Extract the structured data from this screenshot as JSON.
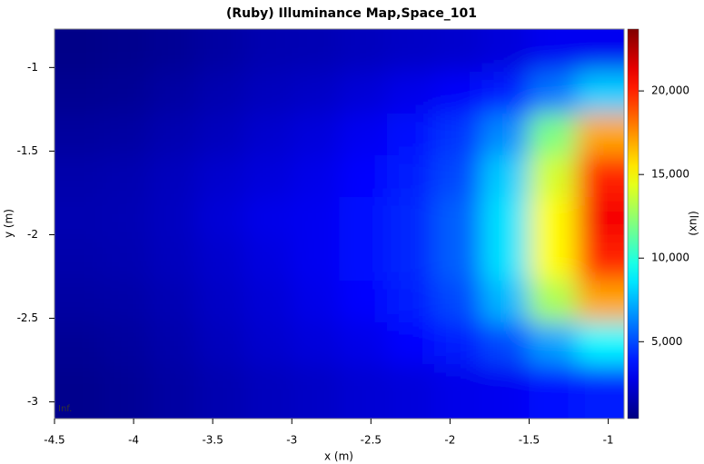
{
  "chart_data": {
    "type": "heatmap",
    "title": "(Ruby) Illuminance Map,Space_101",
    "x_label": "x (m)",
    "y_label": "y (m)",
    "colorbar_label": "(lux)",
    "annotation": "Inf.",
    "colormap": "jet",
    "x": [
      -4.35,
      -4.05,
      -3.75,
      -3.45,
      -3.15,
      -2.85,
      -2.55,
      -2.25,
      -1.95,
      -1.65,
      -1.35,
      -1.05
    ],
    "y": [
      -0.9,
      -1.15,
      -1.4,
      -1.65,
      -1.9,
      -2.15,
      -2.4,
      -2.65,
      -2.9
    ],
    "z": [
      [
        600,
        700,
        900,
        1200,
        1500,
        1600,
        1800,
        2000,
        2200,
        2500,
        3000,
        3000
      ],
      [
        800,
        900,
        1200,
        1500,
        1800,
        2000,
        2400,
        2800,
        3200,
        4000,
        6000,
        8000
      ],
      [
        1100,
        1200,
        1500,
        1800,
        2200,
        2500,
        3000,
        3500,
        4500,
        6500,
        12000,
        17000
      ],
      [
        1400,
        1500,
        1800,
        2200,
        2500,
        2800,
        3300,
        4000,
        5000,
        8000,
        14000,
        20000
      ],
      [
        1500,
        1600,
        1900,
        2400,
        2800,
        3000,
        3500,
        4200,
        5500,
        8500,
        15000,
        21000
      ],
      [
        1400,
        1500,
        1800,
        2200,
        2600,
        3000,
        3500,
        4200,
        5500,
        8500,
        15000,
        20000
      ],
      [
        1200,
        1300,
        1600,
        2000,
        2400,
        2800,
        3300,
        4000,
        5000,
        7500,
        13000,
        17000
      ],
      [
        900,
        1100,
        1400,
        1800,
        2200,
        2500,
        2800,
        3300,
        4000,
        5000,
        7000,
        9000
      ],
      [
        700,
        900,
        1200,
        1500,
        1800,
        2000,
        2300,
        2500,
        2800,
        3000,
        3500,
        4000
      ]
    ],
    "xlim": [
      -4.5,
      -0.9
    ],
    "ylim": [
      -3.1,
      -0.77
    ],
    "zlim": [
      400,
      23700
    ],
    "xticks": [
      -4.5,
      -4,
      -3.5,
      -3,
      -2.5,
      -2,
      -1.5,
      -1
    ],
    "yticks": [
      -1,
      -1.5,
      -2,
      -2.5,
      -3
    ],
    "zticks": [
      {
        "value": 5000,
        "label": "5,000"
      },
      {
        "value": 10000,
        "label": "10,000"
      },
      {
        "value": 15000,
        "label": "15,000"
      },
      {
        "value": 20000,
        "label": "20,000"
      }
    ]
  }
}
